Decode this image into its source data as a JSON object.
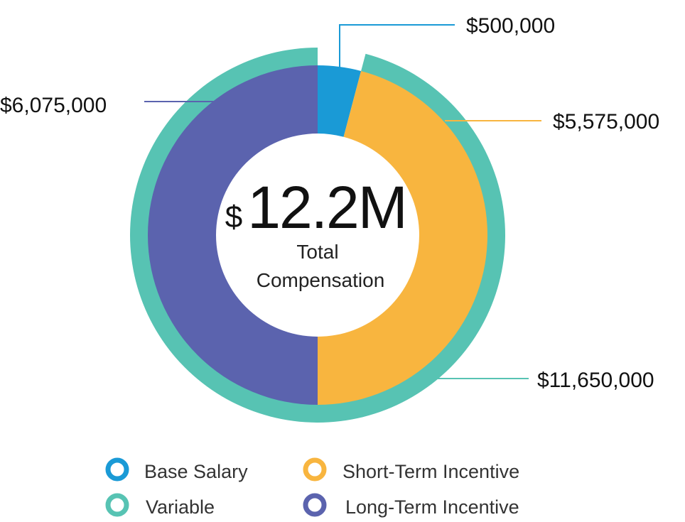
{
  "chart_data": {
    "type": "pie",
    "title": "",
    "center": {
      "currency": "$",
      "value": "12.2M",
      "label_line1": "Total",
      "label_line2": "Compensation"
    },
    "inner_ring": [
      {
        "name": "Base Salary",
        "value": 500000,
        "label": "$500,000",
        "color": "#1A9AD6"
      },
      {
        "name": "Short-Term Incentive",
        "value": 5575000,
        "label": "$5,575,000",
        "color": "#F8B53F"
      },
      {
        "name": "Long-Term Incentive",
        "value": 6075000,
        "label": "$6,075,000",
        "color": "#5B63AE"
      }
    ],
    "outer_ring": [
      {
        "name": "Variable",
        "value": 11650000,
        "label": "$11,650,000",
        "color": "#57C3B3"
      }
    ],
    "legend": [
      {
        "name": "Base Salary",
        "color": "#1A9AD6"
      },
      {
        "name": "Short-Term Incentive",
        "color": "#F8B53F"
      },
      {
        "name": "Variable",
        "color": "#57C3B3"
      },
      {
        "name": "Long-Term Incentive",
        "color": "#5B63AE"
      }
    ]
  }
}
